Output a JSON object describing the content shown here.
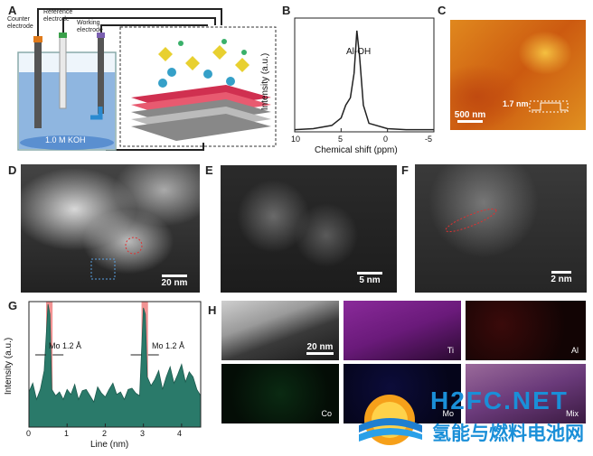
{
  "panels": {
    "A": {
      "label": "A",
      "counter": "Counter\nelectrode",
      "reference": "Reference\nelectrode",
      "working": "Working\nelectrode",
      "electrolyte": "1.0 M KOH"
    },
    "B": {
      "label": "B",
      "peak": "Al-OH",
      "ylabel": "Intensity (a.u.)",
      "xlabel": "Chemical shift (ppm)",
      "xticks": [
        "10",
        "5",
        "0",
        "-5"
      ]
    },
    "C": {
      "label": "C",
      "height": "1.7 nm",
      "scale": "500 nm"
    },
    "D": {
      "label": "D",
      "scale": "20 nm"
    },
    "E": {
      "label": "E",
      "scale": "5 nm"
    },
    "F": {
      "label": "F",
      "scale": "2 nm"
    },
    "G": {
      "label": "G",
      "ylabel": "Intensity (a.u.)",
      "xlabel": "Line (nm)",
      "xticks": [
        "0",
        "1",
        "2",
        "3",
        "4"
      ],
      "annot1": "Mo 1.2 Å",
      "annot2": "Mo 1.2 Å"
    },
    "H": {
      "label": "H",
      "scale": "20 nm",
      "maps": [
        "Ti",
        "Al",
        "Co",
        "Mo",
        "Mix"
      ]
    }
  },
  "watermark": {
    "line1": "H2FC.NET",
    "line2": "氢能与燃料电池网"
  },
  "chart_data": [
    {
      "type": "line",
      "panel": "B",
      "x": [
        10,
        8,
        6,
        5,
        4.5,
        4,
        3.6,
        3.3,
        3,
        2.6,
        2,
        0,
        -2,
        -5
      ],
      "y": [
        0.02,
        0.03,
        0.06,
        0.13,
        0.25,
        0.32,
        0.55,
        0.95,
        0.7,
        0.25,
        0.08,
        0.03,
        0.02,
        0.02
      ],
      "xlim": [
        10,
        -5
      ],
      "annotation": "Al-OH",
      "xlabel": "Chemical shift (ppm)",
      "ylabel": "Intensity (a.u.)"
    },
    {
      "type": "area",
      "panel": "G",
      "xlabel": "Line (nm)",
      "ylabel": "Intensity (a.u.)",
      "xlim": [
        0,
        4.5
      ],
      "x": [
        0.0,
        0.1,
        0.2,
        0.3,
        0.4,
        0.5,
        0.55,
        0.6,
        0.7,
        0.8,
        0.9,
        1.0,
        1.1,
        1.2,
        1.3,
        1.4,
        1.5,
        1.6,
        1.7,
        1.8,
        1.9,
        2.0,
        2.1,
        2.2,
        2.3,
        2.4,
        2.5,
        2.6,
        2.7,
        2.8,
        2.9,
        3.0,
        3.05,
        3.1,
        3.2,
        3.3,
        3.4,
        3.5,
        3.6,
        3.7,
        3.8,
        3.9,
        4.0,
        4.1,
        4.2,
        4.3,
        4.4,
        4.5
      ],
      "y": [
        0.28,
        0.35,
        0.22,
        0.3,
        0.45,
        0.98,
        0.9,
        0.3,
        0.25,
        0.28,
        0.22,
        0.3,
        0.26,
        0.34,
        0.22,
        0.29,
        0.3,
        0.25,
        0.2,
        0.32,
        0.27,
        0.24,
        0.3,
        0.35,
        0.26,
        0.28,
        0.22,
        0.3,
        0.31,
        0.27,
        0.25,
        0.95,
        0.9,
        0.4,
        0.33,
        0.38,
        0.45,
        0.3,
        0.4,
        0.48,
        0.35,
        0.42,
        0.5,
        0.36,
        0.44,
        0.4,
        0.3,
        0.25
      ],
      "highlights": [
        [
          0.45,
          0.62
        ],
        [
          2.95,
          3.12
        ]
      ],
      "annotations": [
        "Mo 1.2 Å",
        "Mo 1.2 Å"
      ]
    }
  ]
}
